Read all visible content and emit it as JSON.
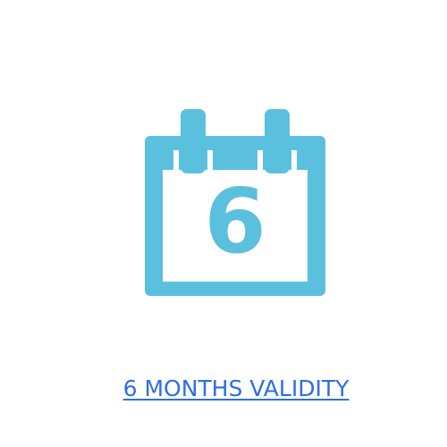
{
  "icon": {
    "name": "calendar-icon",
    "number": "6",
    "color": "#5bc0de"
  },
  "link": {
    "label": "6 MONTHS VALIDITY",
    "color": "#2e6ee6"
  }
}
